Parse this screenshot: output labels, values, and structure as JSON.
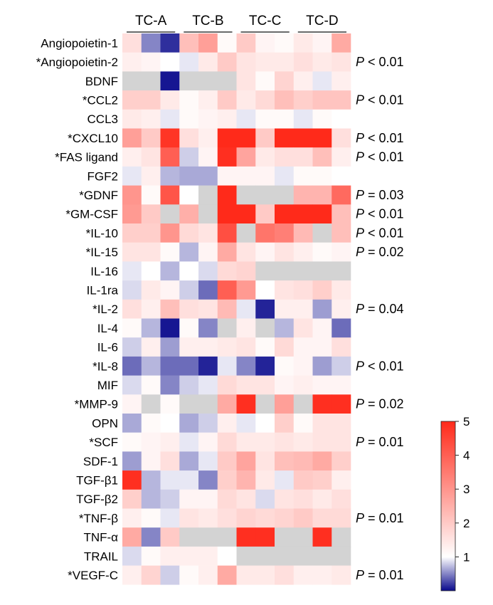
{
  "chart_data": {
    "type": "heatmap",
    "groups": [
      "TC-A",
      "TC-B",
      "TC-C",
      "TC-D"
    ],
    "columns_per_group": 3,
    "rows": [
      {
        "label": "Angiopoietin-1",
        "p": "",
        "values": [
          1.6,
          0.5,
          0.15,
          2.2,
          2.8,
          1.1,
          2.0,
          1.2,
          1.1,
          1.4,
          1.2,
          2.6
        ]
      },
      {
        "label": "*Angiopoietin-2",
        "p": "P < 0.01",
        "values": [
          1.3,
          1.2,
          1.0,
          0.9,
          1.4,
          2.0,
          1.5,
          1.4,
          1.4,
          1.6,
          1.4,
          1.5
        ]
      },
      {
        "label": "BDNF",
        "p": "",
        "values": [
          null,
          null,
          0.05,
          null,
          null,
          null,
          1.5,
          1.1,
          1.8,
          1.3,
          0.9,
          1.3
        ]
      },
      {
        "label": "*CCL2",
        "p": "P < 0.01",
        "values": [
          1.9,
          1.9,
          1.4,
          1.1,
          1.3,
          2.0,
          1.4,
          1.7,
          2.2,
          1.9,
          2.1,
          2.1
        ]
      },
      {
        "label": "CCL3",
        "p": "",
        "values": [
          1.4,
          1.3,
          0.9,
          1.1,
          1.2,
          1.3,
          0.9,
          1.1,
          1.1,
          0.9,
          1.1,
          1.0
        ]
      },
      {
        "label": "*CXCL10",
        "p": "P < 0.01",
        "values": [
          2.8,
          2.0,
          4.8,
          1.6,
          1.3,
          5.0,
          5.0,
          2.0,
          5.0,
          5.0,
          5.0,
          1.6
        ]
      },
      {
        "label": "*FAS ligand",
        "p": "P < 0.01",
        "values": [
          1.3,
          1.5,
          4.0,
          0.8,
          1.2,
          4.9,
          2.7,
          1.4,
          1.6,
          1.6,
          2.2,
          1.3
        ]
      },
      {
        "label": "FGF2",
        "p": "",
        "values": [
          0.9,
          1.3,
          0.7,
          0.65,
          0.65,
          1.2,
          1.2,
          1.2,
          0.9,
          1.1,
          1.1,
          1.0
        ]
      },
      {
        "label": "*GDNF",
        "p": "P = 0.03",
        "values": [
          3.0,
          1.1,
          4.2,
          1.0,
          null,
          5.0,
          null,
          null,
          null,
          2.4,
          2.4,
          3.8
        ]
      },
      {
        "label": "*GM-CSF",
        "p": "P < 0.01",
        "values": [
          2.9,
          2.0,
          null,
          2.5,
          null,
          5.0,
          5.0,
          2.0,
          5.0,
          5.0,
          5.0,
          2.2
        ]
      },
      {
        "label": "*IL-10",
        "p": "P < 0.01",
        "values": [
          1.9,
          1.9,
          3.0,
          1.7,
          1.5,
          4.3,
          null,
          3.6,
          3.4,
          2.3,
          null,
          2.2
        ]
      },
      {
        "label": "*IL-15",
        "p": "P = 0.02",
        "values": [
          1.5,
          1.5,
          1.1,
          0.7,
          1.2,
          2.6,
          1.5,
          1.2,
          1.5,
          1.3,
          1.1,
          1.2
        ]
      },
      {
        "label": "IL-16",
        "p": "",
        "values": [
          0.9,
          1.0,
          0.7,
          1.0,
          0.85,
          1.7,
          1.8,
          null,
          null,
          null,
          null,
          null
        ]
      },
      {
        "label": "IL-1ra",
        "p": "",
        "values": [
          0.85,
          1.4,
          1.2,
          0.8,
          0.4,
          4.0,
          2.9,
          1.0,
          1.5,
          1.6,
          1.9,
          1.4
        ]
      },
      {
        "label": "*IL-2",
        "p": "P = 0.04",
        "values": [
          1.6,
          1.3,
          2.2,
          1.6,
          1.5,
          2.3,
          0.9,
          0.1,
          1.3,
          1.3,
          0.6,
          1.3
        ]
      },
      {
        "label": "IL-4",
        "p": "",
        "values": [
          1.1,
          0.7,
          0.05,
          1.1,
          0.5,
          null,
          1.3,
          null,
          0.7,
          1.5,
          1.2,
          0.4
        ]
      },
      {
        "label": "IL-6",
        "p": "",
        "values": [
          0.8,
          1.3,
          0.6,
          1.3,
          1.3,
          1.4,
          1.5,
          1.1,
          1.7,
          1.2,
          1.2,
          1.6
        ]
      },
      {
        "label": "*IL-8",
        "p": "P < 0.01",
        "values": [
          0.4,
          0.7,
          0.4,
          0.4,
          0.1,
          0.9,
          0.5,
          0.1,
          1.1,
          1.2,
          0.6,
          0.8
        ]
      },
      {
        "label": "MIF",
        "p": "",
        "values": [
          0.85,
          1.1,
          0.5,
          0.8,
          0.9,
          1.7,
          1.5,
          1.5,
          1.2,
          1.3,
          1.2,
          1.2
        ]
      },
      {
        "label": "*MMP-9",
        "p": "P = 0.02",
        "values": [
          1.2,
          null,
          1.1,
          null,
          null,
          2.6,
          4.9,
          null,
          2.8,
          null,
          4.9,
          4.9
        ]
      },
      {
        "label": "OPN",
        "p": "",
        "values": [
          0.65,
          1.1,
          1.0,
          0.65,
          0.8,
          1.3,
          0.9,
          1.0,
          1.9,
          1.1,
          1.5,
          1.5
        ]
      },
      {
        "label": "*SCF",
        "p": "P = 0.01",
        "values": [
          1.1,
          1.2,
          1.3,
          0.9,
          1.2,
          1.7,
          1.4,
          1.4,
          1.5,
          1.4,
          1.5,
          1.5
        ]
      },
      {
        "label": "SDF-1",
        "p": "",
        "values": [
          0.6,
          1.2,
          1.6,
          0.65,
          0.9,
          2.0,
          2.7,
          1.5,
          2.2,
          2.3,
          2.6,
          1.9
        ]
      },
      {
        "label": "TGF-β1",
        "p": "",
        "values": [
          4.9,
          0.7,
          0.9,
          0.9,
          0.5,
          1.9,
          2.4,
          1.4,
          0.9,
          2.0,
          1.9,
          1.3
        ]
      },
      {
        "label": "TGF-β2",
        "p": "",
        "values": [
          1.9,
          0.7,
          0.8,
          1.2,
          1.2,
          1.7,
          1.5,
          0.85,
          1.5,
          1.6,
          1.4,
          1.6
        ]
      },
      {
        "label": "*TNF-β",
        "p": "P = 0.01",
        "values": [
          1.3,
          1.1,
          0.9,
          1.5,
          1.4,
          1.6,
          1.8,
          1.7,
          1.8,
          2.0,
          1.7,
          1.7
        ]
      },
      {
        "label": "TNF-α",
        "p": "",
        "values": [
          2.6,
          0.5,
          2.0,
          null,
          null,
          null,
          4.9,
          4.9,
          null,
          null,
          4.9,
          null
        ]
      },
      {
        "label": "TRAIL",
        "p": "",
        "values": [
          0.85,
          1.1,
          1.3,
          1.3,
          1.3,
          1.0,
          null,
          null,
          null,
          null,
          null,
          null
        ]
      },
      {
        "label": "*VEGF-C",
        "p": "P = 0.01",
        "values": [
          1.3,
          1.8,
          0.8,
          1.1,
          1.3,
          2.6,
          1.4,
          1.4,
          1.6,
          1.3,
          1.3,
          1.4
        ]
      }
    ],
    "missing_color": "#d3d3d3",
    "colorbar": {
      "min": 0,
      "max": 5,
      "center": 1,
      "ticks": [
        1,
        2,
        3,
        4,
        5
      ],
      "low_color": "#0a0a8c",
      "mid_color": "#ffffff",
      "high_color": "#ff2a1a"
    }
  }
}
